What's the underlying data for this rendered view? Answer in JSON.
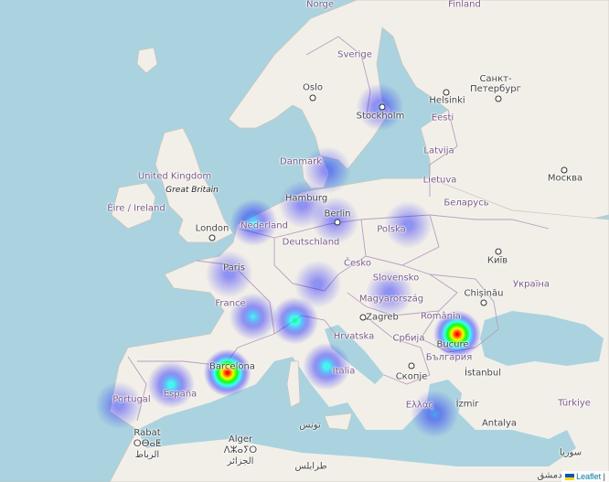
{
  "map": {
    "labels": {
      "norge": "Norge",
      "finland": "Finland",
      "sverige": "Sverige",
      "oslo": "Oslo",
      "stockholm": "Stockholm",
      "helsinki": "Helsinki",
      "spb": "Санкт-\nПетербург",
      "eesti": "Eesti",
      "latvija": "Latvija",
      "lietuva": "Lietuva",
      "danmark": "Danmark",
      "uk": "United Kingdom",
      "great_britain": "Great Britain",
      "eire": "Éire / Ireland",
      "hamburg": "Hamburg",
      "berlin": "Berlin",
      "nederland": "Nederland",
      "london": "London",
      "deutschland": "Deutschland",
      "polska": "Polska",
      "belarus": "Беларусь",
      "moskva": "Москва",
      "kyiv": "Київ",
      "ukraina": "Україна",
      "paris": "Paris",
      "cesko": "Česko",
      "slovensko": "Slovensko",
      "france": "France",
      "magyarorszag": "Magyarország",
      "chisinau": "Chișinău",
      "zagreb": "Zagreb",
      "romania": "România",
      "hrvatska": "Hrvatska",
      "srbija": "Србија",
      "bulgaria": "България",
      "bucuresti": "Bucure",
      "barcelona": "Barcelona",
      "italia": "Italia",
      "skopje": "Скопје",
      "istanbul": "İstanbul",
      "portugal": "Portugal",
      "espana": "España",
      "ellas": "Ελλάς",
      "izmir": "İzmir",
      "turkiye": "Türkiye",
      "rabat": "Rabat\nⵔⴱⴰⵟ\nالرباط",
      "tunis": "تونس",
      "antalya": "Antalya",
      "alger": "Alger\nⴷⵣⴰⵢⵔ\nالجزائر",
      "suriye": "سوريا",
      "tarabulus": "طرابلس",
      "dimashq": "دمشق"
    },
    "heat_points": [
      {
        "name": "Stockholm",
        "lat": 59.33,
        "lon": 18.07,
        "intensity": 0.35
      },
      {
        "name": "Copenhagen",
        "lat": 55.68,
        "lon": 12.57,
        "intensity": 0.3
      },
      {
        "name": "Hamburg",
        "lat": 53.55,
        "lon": 9.99,
        "intensity": 0.3
      },
      {
        "name": "Berlin",
        "lat": 52.52,
        "lon": 13.4,
        "intensity": 0.3
      },
      {
        "name": "Amsterdam",
        "lat": 52.37,
        "lon": 4.9,
        "intensity": 0.45
      },
      {
        "name": "Warsaw",
        "lat": 52.23,
        "lon": 21.01,
        "intensity": 0.3
      },
      {
        "name": "Paris",
        "lat": 48.86,
        "lon": 2.35,
        "intensity": 0.3
      },
      {
        "name": "Munich",
        "lat": 48.14,
        "lon": 11.58,
        "intensity": 0.3
      },
      {
        "name": "Budapest",
        "lat": 47.5,
        "lon": 19.04,
        "intensity": 0.3
      },
      {
        "name": "Milan",
        "lat": 45.46,
        "lon": 9.19,
        "intensity": 0.55
      },
      {
        "name": "Lyon",
        "lat": 45.76,
        "lon": 4.84,
        "intensity": 0.45
      },
      {
        "name": "Bucharest",
        "lat": 44.43,
        "lon": 26.1,
        "intensity": 1.0
      },
      {
        "name": "Barcelona",
        "lat": 41.39,
        "lon": 2.17,
        "intensity": 1.0
      },
      {
        "name": "Madrid",
        "lat": 40.42,
        "lon": -3.7,
        "intensity": 0.5
      },
      {
        "name": "Lisbon",
        "lat": 38.72,
        "lon": -9.14,
        "intensity": 0.3
      },
      {
        "name": "Rome",
        "lat": 41.9,
        "lon": 12.5,
        "intensity": 0.5
      },
      {
        "name": "Athens",
        "lat": 37.98,
        "lon": 23.73,
        "intensity": 0.35
      }
    ],
    "attribution": {
      "leaflet": "Leaflet",
      "sep": "|"
    },
    "colors": {
      "water": "#aad3df",
      "land": "#f2efe9",
      "border": "#b79ebd"
    }
  }
}
